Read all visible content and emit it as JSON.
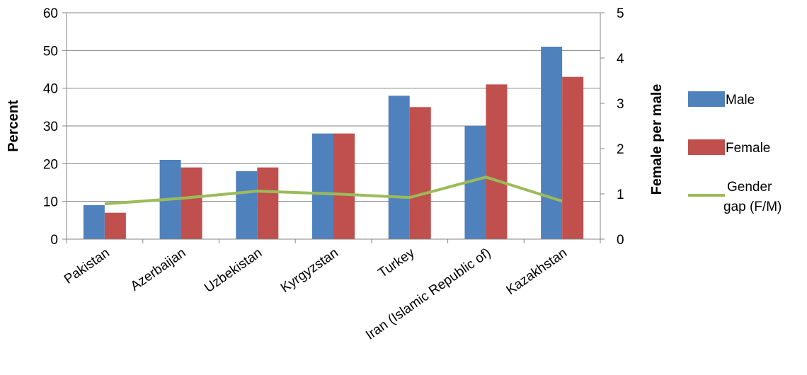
{
  "chart_data": {
    "type": "bar",
    "categories": [
      "Pakistan",
      "Azerbaijan",
      "Uzbekistan",
      "Kyrgyzstan",
      "Turkey",
      "Iran (Islamic Republic of)",
      "Kazakhstan"
    ],
    "series": [
      {
        "name": "Male",
        "axis": "left",
        "kind": "bar",
        "color": "#4F81BD",
        "values": [
          9,
          21,
          18,
          28,
          38,
          30,
          51
        ]
      },
      {
        "name": "Female",
        "axis": "left",
        "kind": "bar",
        "color": "#C0504D",
        "values": [
          7,
          19,
          19,
          28,
          35,
          41,
          43
        ]
      },
      {
        "name": "Gender gap (F/M)",
        "name_lines": [
          "Gender",
          "gap (F/M)"
        ],
        "axis": "right",
        "kind": "line",
        "color": "#9BBB59",
        "values": [
          0.78,
          0.9,
          1.06,
          1.0,
          0.92,
          1.37,
          0.84
        ]
      }
    ],
    "ylabel": "Percent",
    "y2label": "Female per male",
    "ylim": [
      0,
      60
    ],
    "y2lim": [
      0,
      5
    ],
    "yticks": [
      "0",
      "10",
      "20",
      "30",
      "40",
      "50",
      "60"
    ],
    "y2ticks": [
      "0",
      "1",
      "2",
      "3",
      "4",
      "5"
    ],
    "grid": true,
    "legend": "right"
  }
}
